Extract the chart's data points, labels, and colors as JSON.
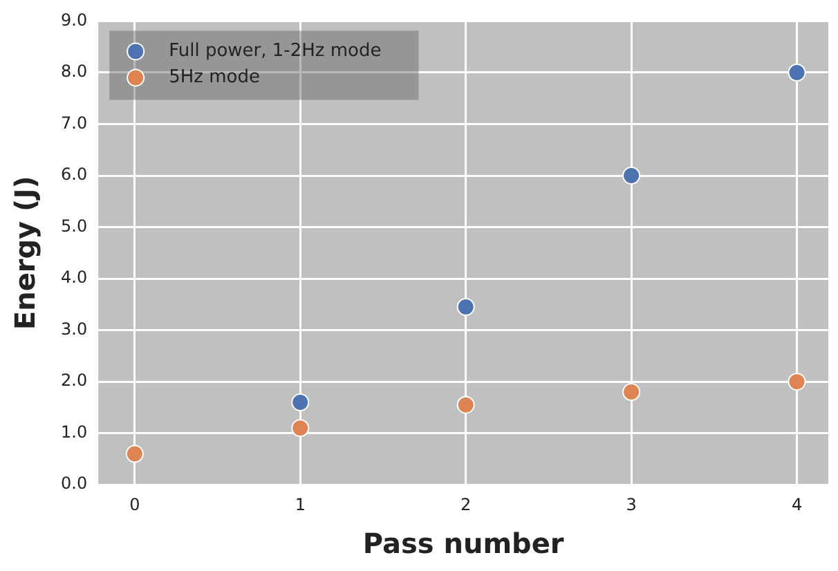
{
  "chart_data": {
    "type": "scatter",
    "xlabel": "Pass number",
    "ylabel": "Energy (J)",
    "xlim": [
      -0.22,
      4.19
    ],
    "xticks": [
      0,
      1,
      2,
      3,
      4
    ],
    "ylim": [
      0,
      9
    ],
    "yticks": [
      {
        "value": 0,
        "label": "0.0"
      },
      {
        "value": 1,
        "label": "1.0"
      },
      {
        "value": 2,
        "label": "2.0"
      },
      {
        "value": 3,
        "label": "3.0"
      },
      {
        "value": 4,
        "label": "4.0"
      },
      {
        "value": 5,
        "label": "5.0"
      },
      {
        "value": 6,
        "label": "6.0"
      },
      {
        "value": 7,
        "label": "7.0"
      },
      {
        "value": 8,
        "label": "8.0"
      },
      {
        "value": 9,
        "label": "9.0"
      }
    ],
    "grid": true,
    "legend": "top left",
    "marker": "circle",
    "series": [
      {
        "name": "Full power, 1-2Hz mode",
        "color": "#4c72b0",
        "x": [
          1,
          2,
          3,
          4
        ],
        "values": [
          1.6,
          3.45,
          6.0,
          8.0
        ]
      },
      {
        "name": "5Hz mode",
        "color": "#dd8452",
        "x": [
          0,
          1,
          2,
          3,
          4
        ],
        "values": [
          0.6,
          1.1,
          1.55,
          1.8,
          2.0
        ]
      }
    ]
  }
}
